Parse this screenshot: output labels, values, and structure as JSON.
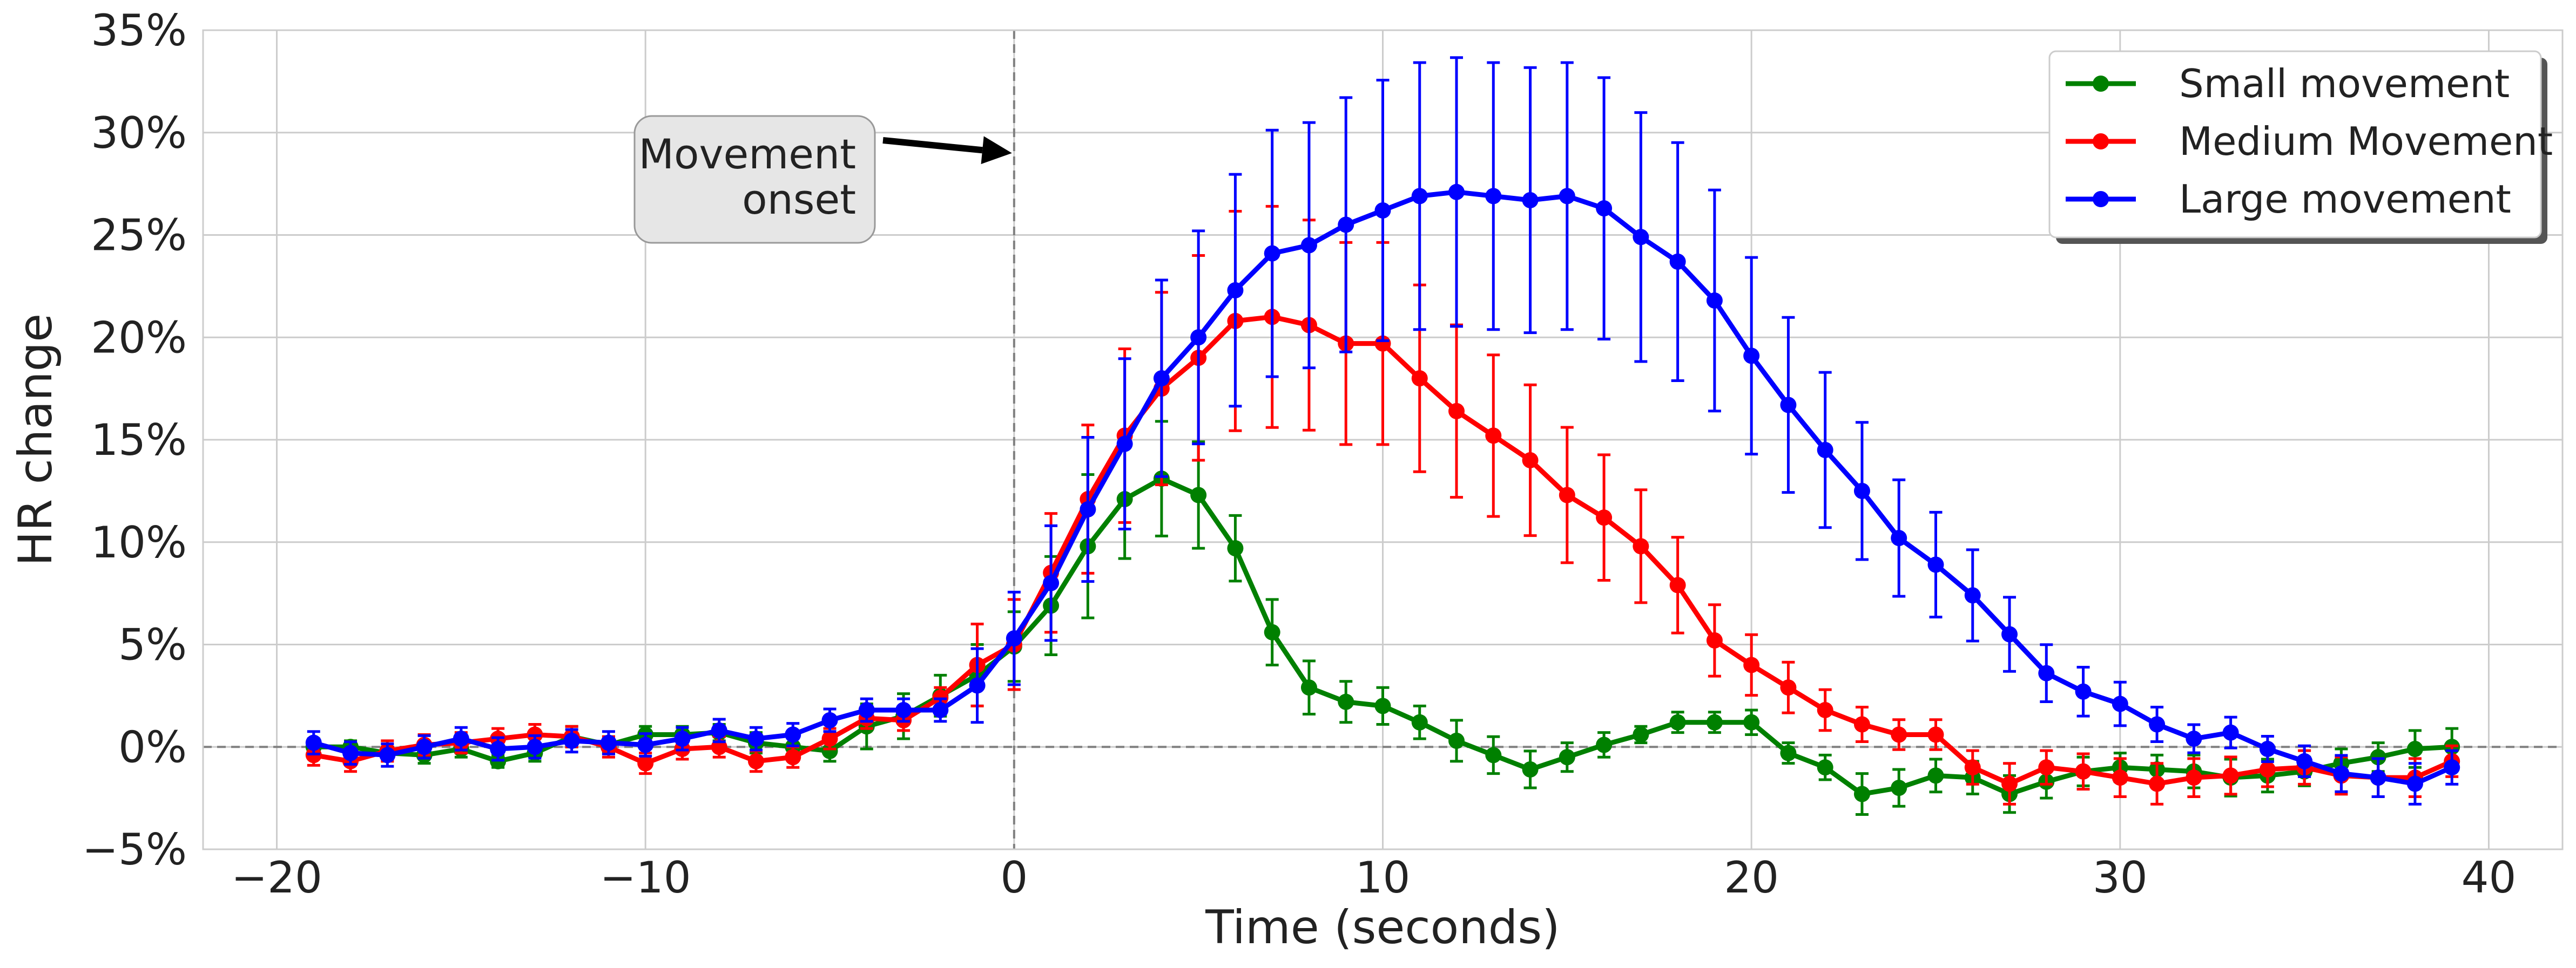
{
  "chart_data": {
    "type": "line",
    "title": "",
    "xlabel": "Time (seconds)",
    "ylabel": "HR change",
    "xlim": [
      -22,
      42
    ],
    "ylim": [
      -5,
      35
    ],
    "x_ticks": [
      -20,
      -10,
      0,
      10,
      20,
      30,
      40
    ],
    "x_tick_labels": [
      "−20",
      "−10",
      "0",
      "10",
      "20",
      "30",
      "40"
    ],
    "y_ticks": [
      -5,
      0,
      5,
      10,
      15,
      20,
      25,
      30,
      35
    ],
    "y_tick_labels": [
      "−5%",
      "0%",
      "5%",
      "10%",
      "15%",
      "20%",
      "25%",
      "30%",
      "35%"
    ],
    "grid": true,
    "legend_position": "top-right",
    "reference_lines": {
      "vertical_x": 0,
      "horizontal_y": 0
    },
    "annotation": {
      "lines": [
        "Movement",
        "onset"
      ],
      "points_to": [
        0,
        29
      ]
    },
    "x": [
      -19,
      -18,
      -17,
      -16,
      -15,
      -14,
      -13,
      -12,
      -11,
      -10,
      -9,
      -8,
      -7,
      -6,
      -5,
      -4,
      -3,
      -2,
      -1,
      0,
      1,
      2,
      3,
      4,
      5,
      6,
      7,
      8,
      9,
      10,
      11,
      12,
      13,
      14,
      15,
      16,
      17,
      18,
      19,
      20,
      21,
      22,
      23,
      24,
      25,
      26,
      27,
      28,
      29,
      30,
      31,
      32,
      33,
      34,
      35,
      36,
      37,
      38,
      39
    ],
    "series": [
      {
        "name": "Small movement",
        "color": "#008000",
        "values": [
          0.0,
          0.0,
          -0.3,
          -0.4,
          -0.1,
          -0.7,
          -0.3,
          0.5,
          0.1,
          0.6,
          0.6,
          0.7,
          0.2,
          0.0,
          -0.2,
          1.0,
          1.5,
          2.5,
          3.5,
          4.9,
          6.9,
          9.8,
          12.1,
          13.1,
          12.3,
          9.7,
          5.6,
          2.9,
          2.2,
          2.0,
          1.2,
          0.3,
          -0.4,
          -1.1,
          -0.5,
          0.1,
          0.6,
          1.2,
          1.2,
          1.2,
          -0.3,
          -1.0,
          -2.3,
          -2.0,
          -1.4,
          -1.5,
          -2.3,
          -1.7,
          -1.2,
          -1.0,
          -1.1,
          -1.2,
          -1.5,
          -1.4,
          -1.2,
          -0.8,
          -0.5,
          -0.1,
          0.0
        ],
        "errors": [
          0.4,
          0.3,
          0.3,
          0.4,
          0.4,
          0.3,
          0.4,
          0.5,
          0.4,
          0.4,
          0.4,
          0.4,
          0.5,
          0.5,
          0.5,
          1.1,
          1.1,
          1.0,
          1.5,
          1.7,
          2.4,
          3.5,
          2.9,
          2.8,
          2.6,
          1.6,
          1.6,
          1.3,
          1.0,
          0.9,
          0.8,
          1.0,
          0.9,
          0.9,
          0.7,
          0.6,
          0.4,
          0.5,
          0.5,
          0.6,
          0.5,
          0.6,
          1.0,
          0.9,
          0.8,
          0.8,
          0.9,
          0.8,
          0.7,
          0.7,
          0.7,
          0.8,
          0.9,
          0.8,
          0.7,
          0.7,
          0.7,
          0.9,
          0.9
        ]
      },
      {
        "name": "Medium Movement",
        "color": "#ff0000",
        "values": [
          -0.4,
          -0.7,
          -0.2,
          0.1,
          0.2,
          0.4,
          0.6,
          0.5,
          0.0,
          -0.8,
          -0.1,
          0.0,
          -0.7,
          -0.5,
          0.4,
          1.4,
          1.3,
          2.4,
          4.0,
          5.0,
          8.5,
          12.1,
          15.2,
          17.5,
          19.0,
          20.8,
          21.0,
          20.6,
          19.7,
          19.7,
          18.0,
          16.4,
          15.2,
          14.0,
          12.3,
          11.2,
          9.8,
          7.9,
          5.2,
          4.0,
          2.9,
          1.8,
          1.1,
          0.6,
          0.6,
          -1.0,
          -1.8,
          -1.0,
          -1.2,
          -1.5,
          -1.8,
          -1.5,
          -1.4,
          -1.1,
          -1.0,
          -1.4,
          -1.5,
          -1.5,
          -0.7
        ]
      },
      {
        "name": "Large movement",
        "color": "#0000ff",
        "values": [
          0.2,
          -0.3,
          -0.4,
          0.0,
          0.4,
          -0.1,
          0.0,
          0.3,
          0.2,
          0.1,
          0.4,
          0.8,
          0.4,
          0.6,
          1.3,
          1.8,
          1.8,
          1.8,
          3.0,
          5.3,
          8.0,
          11.6,
          14.8,
          18.0,
          20.0,
          22.3,
          24.1,
          24.5,
          25.5,
          26.2,
          26.9,
          27.1,
          26.9,
          26.7,
          26.9,
          26.3,
          24.9,
          23.7,
          21.8,
          19.1,
          16.7,
          14.5,
          12.5,
          10.2,
          8.9,
          7.4,
          5.5,
          3.6,
          2.7,
          2.1,
          1.1,
          0.4,
          0.7,
          -0.1,
          -0.7,
          -1.3,
          -1.5,
          -1.8,
          -1.0
        ]
      }
    ]
  }
}
